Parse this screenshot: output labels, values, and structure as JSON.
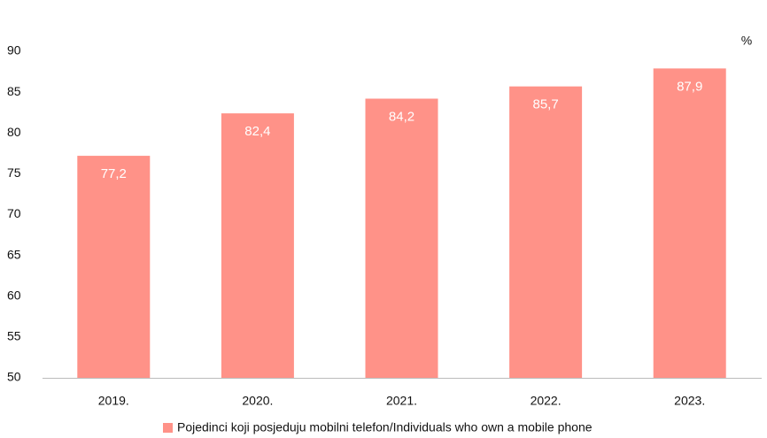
{
  "chart_data": {
    "type": "bar",
    "unit_label": "%",
    "categories": [
      "2019.",
      "2020.",
      "2021.",
      "2022.",
      "2023."
    ],
    "series": [
      {
        "name": "Pojedinci koji posjeduju mobilni telefon/Individuals who own a mobile phone",
        "color": "#ff9288",
        "values": [
          77.2,
          82.4,
          84.2,
          85.7,
          87.9
        ],
        "value_labels": [
          "77,2",
          "82,4",
          "84,2",
          "85,7",
          "87,9"
        ]
      }
    ],
    "ylim": [
      50,
      90
    ],
    "yticks": [
      50,
      55,
      60,
      65,
      70,
      75,
      80,
      85,
      90
    ],
    "grid": false
  }
}
